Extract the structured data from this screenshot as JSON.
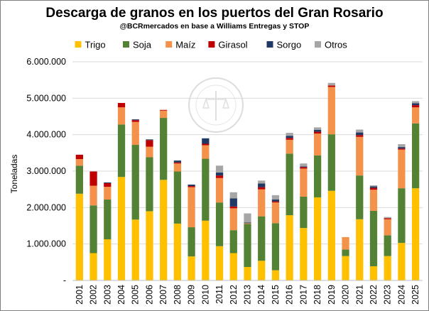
{
  "chart_data": {
    "type": "bar",
    "stacked": true,
    "title": "Descarga de granos en los puertos del Gran Rosario",
    "subtitle": "@BCRmercados en base a Williams Entregas y STOP",
    "ylabel": "Toneladas",
    "xlabel": "",
    "ylim": [
      0,
      6000000
    ],
    "yticks": [
      0,
      1000000,
      2000000,
      3000000,
      4000000,
      5000000,
      6000000
    ],
    "ytick_labels": [
      "-",
      "1.000.000",
      "2.000.000",
      "3.000.000",
      "4.000.000",
      "5.000.000",
      "6.000.000"
    ],
    "grid": true,
    "legend_position": "top",
    "categories": [
      "2001",
      "2002",
      "2003",
      "2004",
      "2005",
      "2006",
      "2007",
      "2008",
      "2009",
      "2010",
      "2011",
      "2012",
      "2013",
      "2014",
      "2015",
      "2016",
      "2017",
      "2018",
      "2019",
      "2020",
      "2021",
      "2022",
      "2023",
      "2024",
      "2025"
    ],
    "series": [
      {
        "name": "Trigo",
        "color": "#FFC000",
        "values": [
          2380000,
          750000,
          1130000,
          2840000,
          1670000,
          1900000,
          2760000,
          1560000,
          660000,
          1640000,
          940000,
          750000,
          370000,
          540000,
          280000,
          1790000,
          1440000,
          2280000,
          2460000,
          670000,
          1680000,
          390000,
          670000,
          1030000,
          2530000
        ]
      },
      {
        "name": "Soja",
        "color": "#548235",
        "values": [
          770000,
          1310000,
          1090000,
          1440000,
          2050000,
          1480000,
          1700000,
          1430000,
          800000,
          1700000,
          1200000,
          630000,
          1180000,
          1220000,
          1290000,
          1690000,
          860000,
          1150000,
          1550000,
          180000,
          1200000,
          1520000,
          570000,
          1500000,
          1780000
        ]
      },
      {
        "name": "Maíz",
        "color": "#F4914A",
        "values": [
          180000,
          540000,
          350000,
          470000,
          630000,
          290000,
          200000,
          220000,
          1100000,
          370000,
          670000,
          600000,
          20000,
          740000,
          570000,
          380000,
          770000,
          600000,
          1300000,
          340000,
          1060000,
          580000,
          440000,
          1060000,
          440000
        ]
      },
      {
        "name": "Girasol",
        "color": "#C00000",
        "values": [
          120000,
          390000,
          100000,
          120000,
          50000,
          180000,
          20000,
          30000,
          30000,
          40000,
          70000,
          50000,
          0,
          60000,
          30000,
          50000,
          40000,
          50000,
          40000,
          0,
          50000,
          50000,
          30000,
          30000,
          60000
        ]
      },
      {
        "name": "Sorgo",
        "color": "#1F3864",
        "values": [
          0,
          0,
          20000,
          0,
          20000,
          20000,
          0,
          50000,
          40000,
          150000,
          80000,
          220000,
          20000,
          100000,
          50000,
          60000,
          20000,
          50000,
          0,
          0,
          70000,
          40000,
          0,
          40000,
          50000
        ]
      },
      {
        "name": "Otros",
        "color": "#A6A6A6",
        "values": [
          0,
          0,
          0,
          0,
          0,
          0,
          0,
          0,
          0,
          0,
          190000,
          170000,
          250000,
          80000,
          120000,
          80000,
          80000,
          70000,
          70000,
          0,
          80000,
          30000,
          30000,
          80000,
          60000
        ]
      }
    ]
  }
}
